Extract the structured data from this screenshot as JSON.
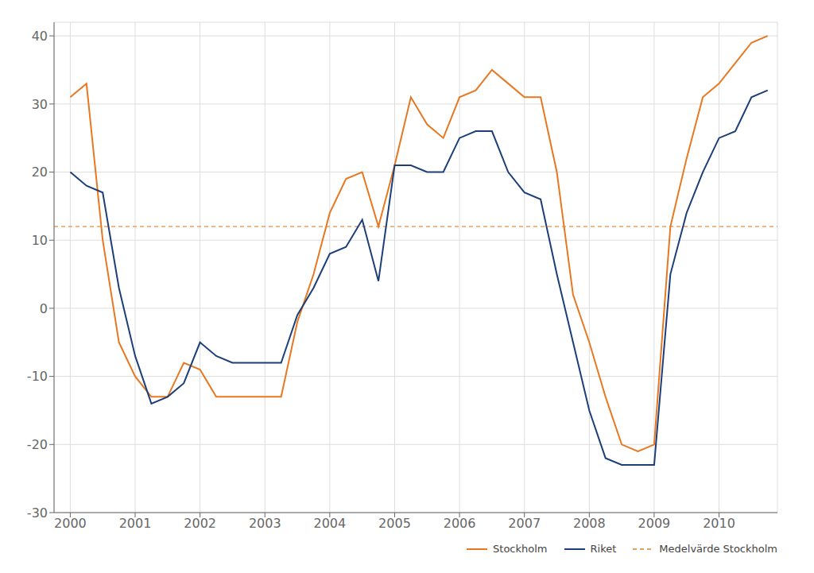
{
  "chart_data": {
    "type": "line",
    "x": [
      2000.0,
      2000.25,
      2000.5,
      2000.75,
      2001.0,
      2001.25,
      2001.5,
      2001.75,
      2002.0,
      2002.25,
      2002.5,
      2002.75,
      2003.0,
      2003.25,
      2003.5,
      2003.75,
      2004.0,
      2004.25,
      2004.5,
      2004.75,
      2005.0,
      2005.25,
      2005.5,
      2005.75,
      2006.0,
      2006.25,
      2006.5,
      2006.75,
      2007.0,
      2007.25,
      2007.5,
      2007.75,
      2008.0,
      2008.25,
      2008.5,
      2008.75,
      2009.0,
      2009.25,
      2009.5,
      2009.75,
      2010.0,
      2010.25,
      2010.5,
      2010.75
    ],
    "series": [
      {
        "name": "Stockholm",
        "color": "#E87820",
        "values": [
          31,
          33,
          10,
          -5,
          -10,
          -13,
          -13,
          -8,
          -9,
          -13,
          -13,
          -13,
          -13,
          -13,
          -2,
          5,
          14,
          19,
          20,
          12,
          21,
          31,
          27,
          25,
          31,
          32,
          35,
          33,
          31,
          31,
          20,
          2,
          -5,
          -13,
          -20,
          -21,
          -20,
          12,
          22,
          31,
          33,
          36,
          39,
          40
        ]
      },
      {
        "name": "Riket",
        "color": "#1C3F7A",
        "values": [
          20,
          18,
          17,
          3,
          -7,
          -14,
          -13,
          -11,
          -5,
          -7,
          -8,
          -8,
          -8,
          -8,
          -1,
          3,
          8,
          9,
          13,
          4,
          21,
          21,
          20,
          20,
          25,
          26,
          26,
          20,
          17,
          16,
          5,
          -5,
          -15,
          -22,
          -23,
          -23,
          -23,
          5,
          14,
          20,
          25,
          26,
          31,
          32
        ]
      }
    ],
    "reference_line": {
      "name": "Medelvärde Stockholm",
      "value": 12,
      "color": "#E8A060",
      "line_style": "dashed"
    },
    "xlim": [
      1999.75,
      2010.9
    ],
    "xticks": [
      2000,
      2001,
      2002,
      2003,
      2004,
      2005,
      2006,
      2007,
      2008,
      2009,
      2010
    ],
    "ylim": [
      -30,
      42
    ],
    "yticks": [
      -30,
      -20,
      -10,
      0,
      10,
      20,
      30,
      40
    ],
    "grid": true,
    "legend": "lower right"
  }
}
